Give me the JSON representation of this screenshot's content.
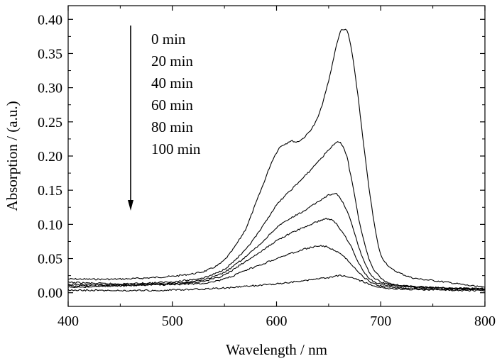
{
  "chart_data": {
    "type": "line",
    "title": "",
    "xlabel": "Wavelength / nm",
    "ylabel": "Absorption / (a.u.)",
    "xlim": [
      400,
      800
    ],
    "ylim": [
      -0.02,
      0.42
    ],
    "xticks": [
      "400",
      "500",
      "600",
      "700",
      "800"
    ],
    "yticks": [
      "0.00",
      "0.05",
      "0.10",
      "0.15",
      "0.20",
      "0.25",
      "0.30",
      "0.35",
      "0.40"
    ],
    "grid": false,
    "legend_position": "top-left",
    "legend_arrow": "down",
    "line_color": "#000000",
    "series": [
      {
        "name": "0  min",
        "x": [
          400,
          450,
          500,
          530,
          550,
          570,
          585,
          600,
          610,
          615,
          620,
          630,
          640,
          650,
          660,
          665,
          670,
          678,
          685,
          690,
          695,
          700,
          710,
          730,
          760,
          800
        ],
        "y": [
          0.02,
          0.02,
          0.024,
          0.031,
          0.048,
          0.092,
          0.15,
          0.205,
          0.219,
          0.222,
          0.221,
          0.233,
          0.258,
          0.31,
          0.375,
          0.385,
          0.37,
          0.29,
          0.2,
          0.14,
          0.09,
          0.055,
          0.035,
          0.022,
          0.016,
          0.008
        ]
      },
      {
        "name": "20 min",
        "x": [
          400,
          450,
          500,
          530,
          550,
          570,
          585,
          600,
          615,
          630,
          645,
          655,
          660,
          665,
          670,
          680,
          690,
          700,
          710,
          730,
          760,
          800
        ],
        "y": [
          0.015,
          0.013,
          0.016,
          0.022,
          0.035,
          0.062,
          0.093,
          0.128,
          0.152,
          0.175,
          0.2,
          0.216,
          0.22,
          0.21,
          0.18,
          0.1,
          0.045,
          0.022,
          0.013,
          0.009,
          0.007,
          0.006
        ]
      },
      {
        "name": "40 min",
        "x": [
          400,
          450,
          500,
          530,
          550,
          570,
          585,
          600,
          615,
          630,
          645,
          655,
          660,
          670,
          680,
          690,
          700,
          710,
          730,
          760,
          800
        ],
        "y": [
          0.012,
          0.012,
          0.014,
          0.019,
          0.03,
          0.052,
          0.072,
          0.095,
          0.11,
          0.123,
          0.138,
          0.145,
          0.14,
          0.11,
          0.062,
          0.028,
          0.016,
          0.012,
          0.009,
          0.007,
          0.006
        ]
      },
      {
        "name": "60 min",
        "x": [
          400,
          450,
          500,
          530,
          550,
          570,
          585,
          600,
          615,
          630,
          645,
          650,
          655,
          660,
          670,
          680,
          690,
          700,
          710,
          730,
          760,
          800
        ],
        "y": [
          0.01,
          0.011,
          0.013,
          0.017,
          0.026,
          0.045,
          0.06,
          0.076,
          0.088,
          0.098,
          0.107,
          0.108,
          0.104,
          0.095,
          0.072,
          0.04,
          0.02,
          0.013,
          0.01,
          0.008,
          0.006,
          0.005
        ]
      },
      {
        "name": "80 min",
        "x": [
          400,
          450,
          500,
          530,
          550,
          570,
          585,
          600,
          615,
          630,
          640,
          645,
          650,
          660,
          670,
          680,
          690,
          700,
          710,
          730,
          760,
          800
        ],
        "y": [
          0.008,
          0.01,
          0.012,
          0.014,
          0.02,
          0.032,
          0.041,
          0.05,
          0.058,
          0.065,
          0.068,
          0.068,
          0.066,
          0.058,
          0.045,
          0.028,
          0.016,
          0.01,
          0.008,
          0.006,
          0.005,
          0.005
        ]
      },
      {
        "name": "100 min",
        "x": [
          400,
          450,
          500,
          550,
          600,
          630,
          650,
          660,
          670,
          680,
          690,
          700,
          710,
          730,
          760,
          800
        ],
        "y": [
          0.004,
          0.003,
          0.004,
          0.007,
          0.013,
          0.018,
          0.022,
          0.025,
          0.023,
          0.018,
          0.012,
          0.008,
          0.006,
          0.005,
          0.004,
          0.003
        ]
      }
    ]
  }
}
